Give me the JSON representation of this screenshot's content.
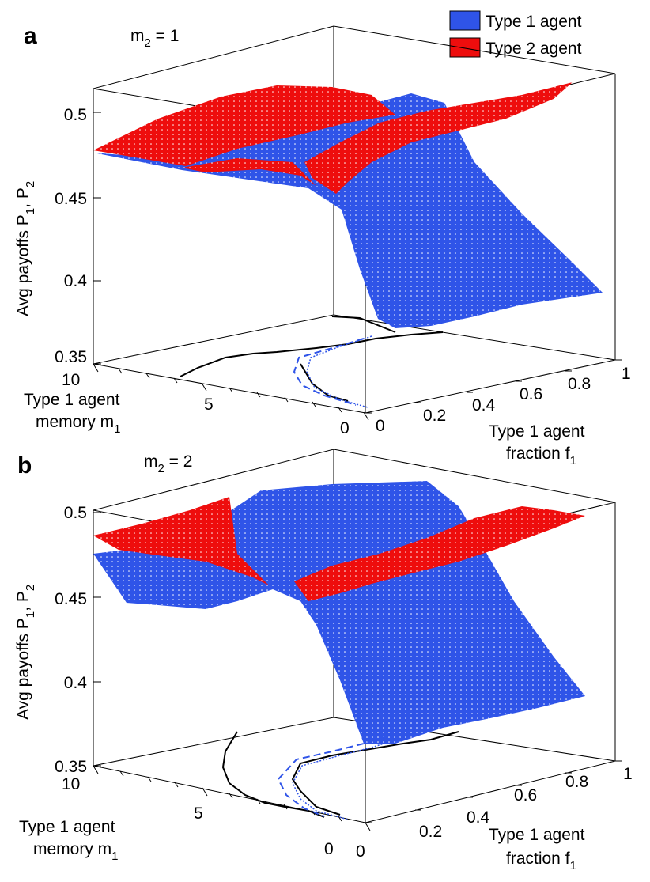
{
  "legend": {
    "items": [
      {
        "label": "Type 1 agent",
        "color": "#2f54e8"
      },
      {
        "label": "Type 2 agent",
        "color": "#ee0d0d"
      }
    ]
  },
  "chart_data": [
    {
      "type": "surface3d",
      "panel": "a",
      "title": "m",
      "title_sub": "2",
      "title_rest": " = 1",
      "zlabel": {
        "pre": "Avg payoffs P",
        "s1": "1",
        "mid": ", P",
        "s2": "2"
      },
      "xlabel_line1": "Type 1 agent",
      "xlabel_line2": "memory m",
      "xlabel_sub": "1",
      "ylabel_line1": "Type 1 agent",
      "ylabel_line2": "fraction f",
      "ylabel_sub": "1",
      "z_ticks": [
        "0.35",
        "0.4",
        "0.45",
        "0.5"
      ],
      "m_ticks": [
        "10",
        "5",
        "0"
      ],
      "f_ticks": [
        "0",
        "0.2",
        "0.4",
        "0.6",
        "0.8",
        "1"
      ],
      "zlim": [
        0.35,
        0.52
      ],
      "mlim": [
        0,
        10
      ],
      "flim": [
        0,
        1
      ],
      "series": [
        {
          "name": "Type 1 agent",
          "description": "payoff surface P1(m1, f1)"
        },
        {
          "name": "Type 2 agent",
          "description": "payoff surface P2(m1, f1)"
        }
      ]
    },
    {
      "type": "surface3d",
      "panel": "b",
      "title": "m",
      "title_sub": "2",
      "title_rest": " = 2",
      "zlabel": {
        "pre": "Avg payoffs P",
        "s1": "1",
        "mid": ", P",
        "s2": "2"
      },
      "xlabel_line1": "Type 1 agent",
      "xlabel_line2": "memory m",
      "xlabel_sub": "1",
      "ylabel_line1": "Type 1 agent",
      "ylabel_line2": "fraction f",
      "ylabel_sub": "1",
      "z_ticks": [
        "0.35",
        "0.4",
        "0.45",
        "0.5"
      ],
      "m_ticks": [
        "10",
        "5",
        "0"
      ],
      "f_ticks": [
        "0",
        "0.2",
        "0.4",
        "0.6",
        "0.8",
        "1"
      ],
      "zlim": [
        0.35,
        0.51
      ],
      "mlim": [
        0,
        10
      ],
      "flim": [
        0,
        1
      ],
      "series": [
        {
          "name": "Type 1 agent",
          "description": "payoff surface P1(m1, f1)"
        },
        {
          "name": "Type 2 agent",
          "description": "payoff surface P2(m1, f1)"
        }
      ]
    }
  ]
}
